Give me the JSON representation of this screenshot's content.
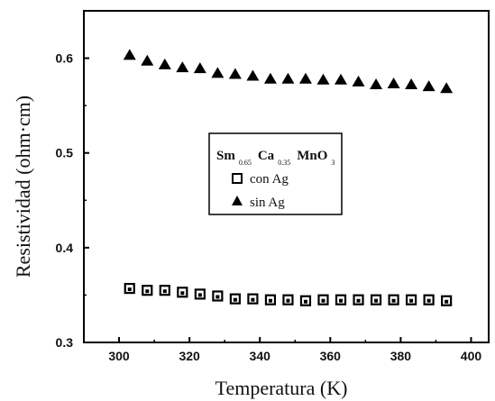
{
  "chart_data": {
    "type": "scatter",
    "xlabel": "Temperatura (K)",
    "ylabel": "Resistividad (ohm·cm)",
    "xlim": [
      290,
      405
    ],
    "ylim": [
      0.3,
      0.65
    ],
    "xticks": [
      "300",
      "320",
      "340",
      "360",
      "380",
      "400"
    ],
    "yticks": [
      "0.3",
      "0.4",
      "0.5",
      "0.6"
    ],
    "grid": false,
    "legend_position": "center",
    "legend": {
      "title_parts": [
        "Sm",
        "0.65",
        "Ca",
        "0.35",
        "MnO",
        "3"
      ],
      "entries": [
        "con Ag",
        "sin Ag"
      ]
    },
    "series": [
      {
        "name": "con Ag",
        "marker": "square",
        "x": [
          303,
          308,
          313,
          318,
          323,
          328,
          333,
          338,
          343,
          348,
          353,
          358,
          363,
          368,
          373,
          378,
          383,
          388,
          393
        ],
        "y": [
          0.357,
          0.355,
          0.355,
          0.353,
          0.351,
          0.349,
          0.346,
          0.346,
          0.345,
          0.345,
          0.344,
          0.345,
          0.345,
          0.345,
          0.345,
          0.345,
          0.345,
          0.345,
          0.344
        ]
      },
      {
        "name": "sin Ag",
        "marker": "triangle",
        "x": [
          303,
          308,
          313,
          318,
          323,
          328,
          333,
          338,
          343,
          348,
          353,
          358,
          363,
          368,
          373,
          378,
          383,
          388,
          393
        ],
        "y": [
          0.603,
          0.597,
          0.593,
          0.59,
          0.589,
          0.584,
          0.583,
          0.581,
          0.578,
          0.578,
          0.578,
          0.577,
          0.577,
          0.575,
          0.572,
          0.573,
          0.572,
          0.57,
          0.568
        ]
      }
    ]
  }
}
